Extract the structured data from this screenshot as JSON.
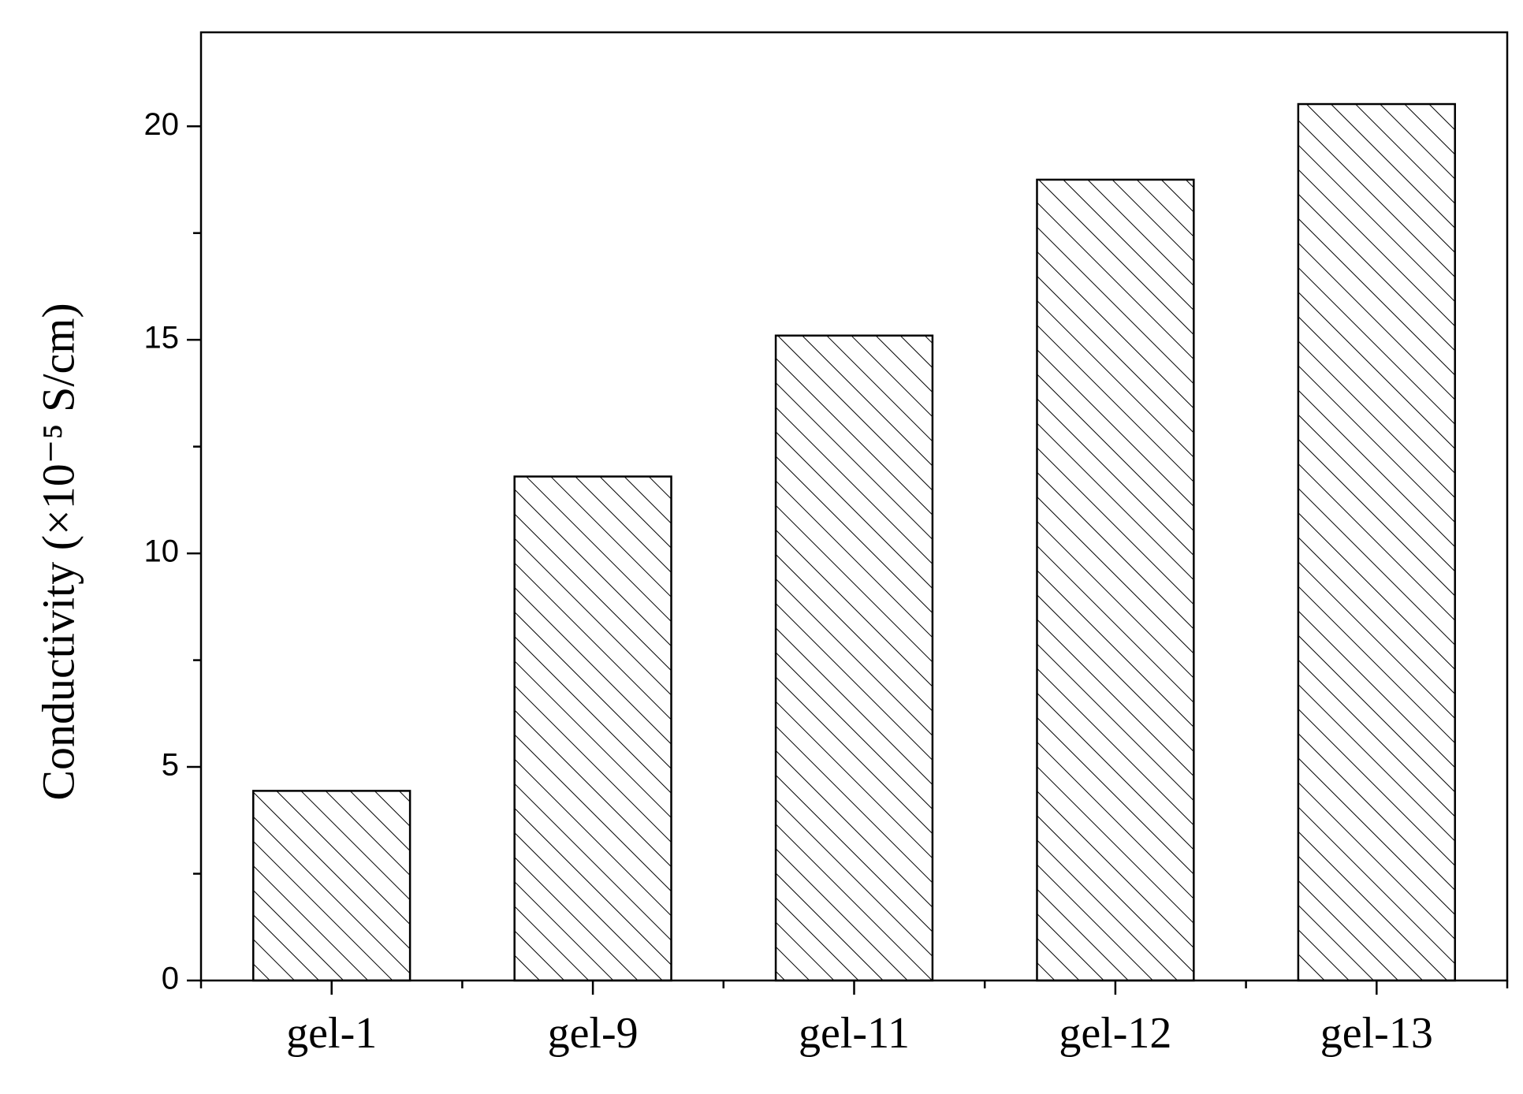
{
  "chart_data": {
    "type": "bar",
    "y_label": "Conductivity (×10⁻⁵ S/cm)",
    "categories": [
      "gel-1",
      "gel-9",
      "gel-11",
      "gel-12",
      "gel-13"
    ],
    "values": [
      4.44,
      11.8,
      15.1,
      18.75,
      20.52
    ],
    "color": "#000000",
    "ylim": [
      0,
      22.2
    ],
    "yticks": [
      0,
      5,
      10,
      15,
      20
    ],
    "grid": false
  }
}
